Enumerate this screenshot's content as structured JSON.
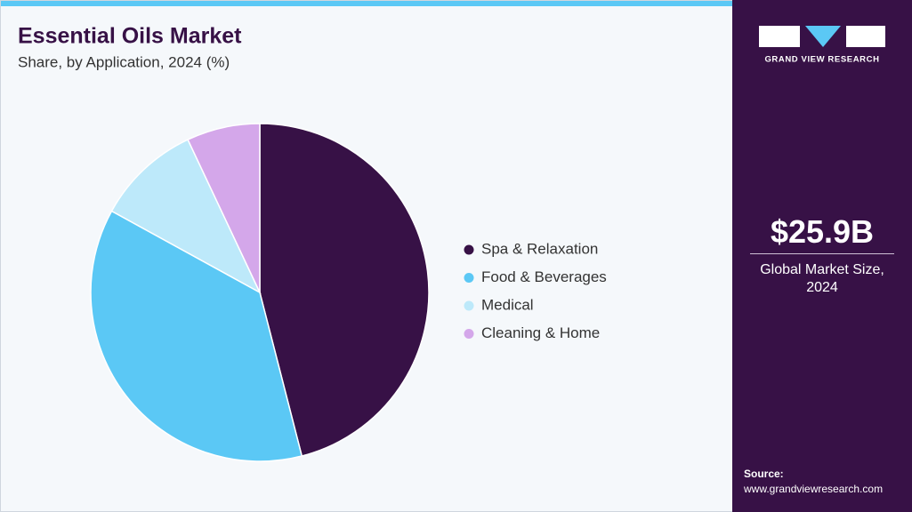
{
  "chart_data": {
    "type": "pie",
    "title": "Essential Oils Market",
    "subtitle": "Share, by Application, 2024 (%)",
    "categories": [
      "Spa & Relaxation",
      "Food & Beverages",
      "Medical",
      "Cleaning & Home"
    ],
    "values": [
      46,
      37,
      10,
      7
    ],
    "colors": [
      "#371146",
      "#5bc8f5",
      "#bde9fa",
      "#d4a7ea"
    ]
  },
  "brand": "GRAND VIEW RESEARCH",
  "market_size": "$25.9B",
  "market_size_label": "Global Market Size, 2024",
  "source_label": "Source:",
  "source_url": "www.grandviewresearch.com"
}
